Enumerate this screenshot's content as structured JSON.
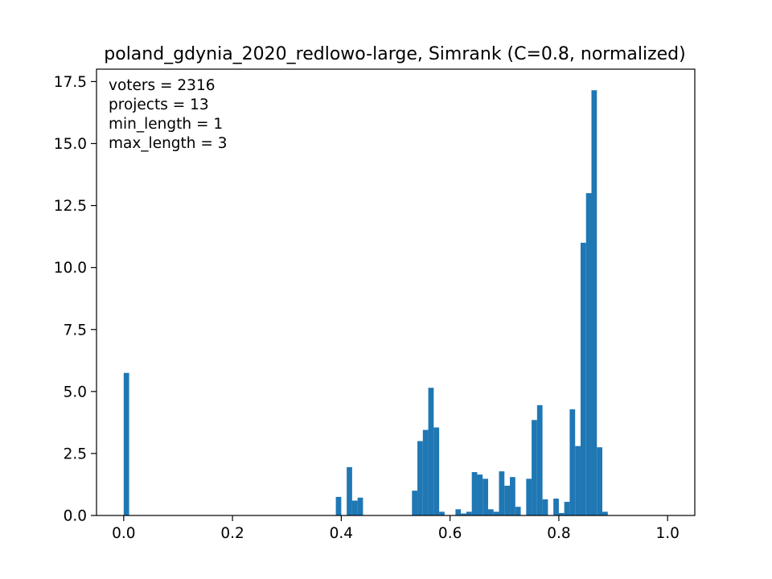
{
  "chart_data": {
    "type": "bar",
    "title": "poland_gdynia_2020_redlowo-large, Simrank (C=0.8, normalized)",
    "xlabel": "",
    "ylabel": "",
    "xlim": [
      -0.05,
      1.05
    ],
    "ylim": [
      0,
      18.0
    ],
    "bin_width": 0.01,
    "x_ticks": [
      {
        "value": 0.0,
        "label": "0.0"
      },
      {
        "value": 0.2,
        "label": "0.2"
      },
      {
        "value": 0.4,
        "label": "0.4"
      },
      {
        "value": 0.6,
        "label": "0.6"
      },
      {
        "value": 0.8,
        "label": "0.8"
      },
      {
        "value": 1.0,
        "label": "1.0"
      }
    ],
    "y_ticks": [
      {
        "value": 0.0,
        "label": "0.0"
      },
      {
        "value": 2.5,
        "label": "2.5"
      },
      {
        "value": 5.0,
        "label": "5.0"
      },
      {
        "value": 7.5,
        "label": "7.5"
      },
      {
        "value": 10.0,
        "label": "10.0"
      },
      {
        "value": 12.5,
        "label": "12.5"
      },
      {
        "value": 15.0,
        "label": "15.0"
      },
      {
        "value": 17.5,
        "label": "17.5"
      }
    ],
    "annotations": [
      "voters = 2316",
      "projects = 13",
      "min_length = 1",
      "max_length = 3"
    ],
    "bar_color": "#1f77b4",
    "bins": [
      {
        "x0": 0.0,
        "value": 5.75
      },
      {
        "x0": 0.39,
        "value": 0.75
      },
      {
        "x0": 0.41,
        "value": 1.95
      },
      {
        "x0": 0.42,
        "value": 0.6
      },
      {
        "x0": 0.43,
        "value": 0.72
      },
      {
        "x0": 0.53,
        "value": 1.0
      },
      {
        "x0": 0.54,
        "value": 3.0
      },
      {
        "x0": 0.55,
        "value": 3.45
      },
      {
        "x0": 0.56,
        "value": 5.15
      },
      {
        "x0": 0.57,
        "value": 3.55
      },
      {
        "x0": 0.58,
        "value": 0.15
      },
      {
        "x0": 0.61,
        "value": 0.25
      },
      {
        "x0": 0.62,
        "value": 0.08
      },
      {
        "x0": 0.63,
        "value": 0.15
      },
      {
        "x0": 0.64,
        "value": 1.75
      },
      {
        "x0": 0.65,
        "value": 1.65
      },
      {
        "x0": 0.66,
        "value": 1.48
      },
      {
        "x0": 0.67,
        "value": 0.25
      },
      {
        "x0": 0.68,
        "value": 0.15
      },
      {
        "x0": 0.69,
        "value": 1.78
      },
      {
        "x0": 0.7,
        "value": 1.2
      },
      {
        "x0": 0.71,
        "value": 1.55
      },
      {
        "x0": 0.72,
        "value": 0.35
      },
      {
        "x0": 0.74,
        "value": 1.48
      },
      {
        "x0": 0.75,
        "value": 3.85
      },
      {
        "x0": 0.76,
        "value": 4.45
      },
      {
        "x0": 0.77,
        "value": 0.65
      },
      {
        "x0": 0.79,
        "value": 0.68
      },
      {
        "x0": 0.8,
        "value": 0.1
      },
      {
        "x0": 0.81,
        "value": 0.55
      },
      {
        "x0": 0.82,
        "value": 4.28
      },
      {
        "x0": 0.83,
        "value": 2.8
      },
      {
        "x0": 0.84,
        "value": 11.0
      },
      {
        "x0": 0.85,
        "value": 13.0
      },
      {
        "x0": 0.86,
        "value": 17.15
      },
      {
        "x0": 0.87,
        "value": 2.75
      },
      {
        "x0": 0.88,
        "value": 0.15
      }
    ]
  }
}
